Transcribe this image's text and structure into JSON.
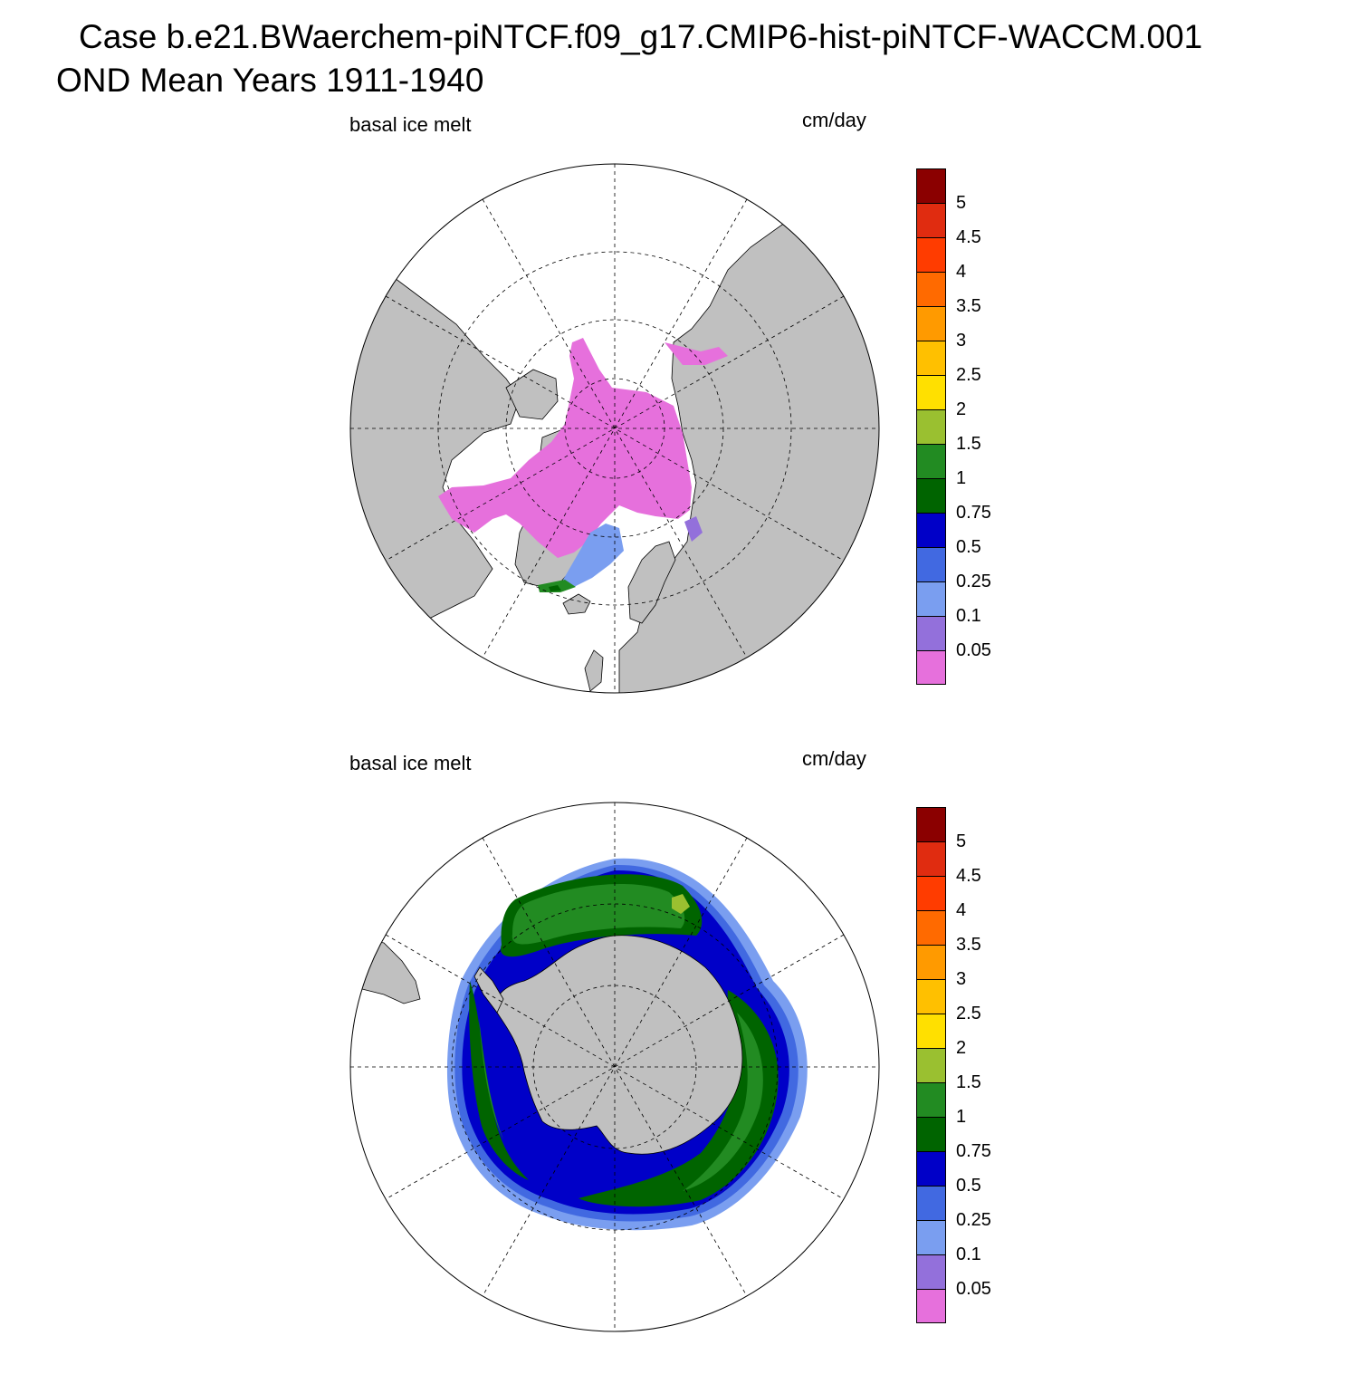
{
  "title": {
    "line1": "Case b.e21.BWaerchem-piNTCF.f09_g17.CMIP6-hist-piNTCF-WACCM.001",
    "line2": "OND Mean   Years 1911-1940"
  },
  "colors": {
    "land": "#c0c0c0",
    "ocean": "#ffffff",
    "coast": "#000000",
    "grid": "#000000"
  },
  "colorbar": {
    "levels": [
      "0.05",
      "0.1",
      "0.25",
      "0.5",
      "0.75",
      "1",
      "1.5",
      "2",
      "2.5",
      "3",
      "3.5",
      "4",
      "4.5",
      "5"
    ],
    "colors": [
      "#e670dc",
      "#9370db",
      "#7a9ef0",
      "#4169e1",
      "#0000c8",
      "#006400",
      "#228b22",
      "#9ac030",
      "#ffe000",
      "#ffc000",
      "#ff9a00",
      "#ff6a00",
      "#ff3c00",
      "#e02c10",
      "#8b0000"
    ]
  },
  "panels": [
    {
      "id": "north",
      "variable": "basal ice melt",
      "units": "cm/day",
      "projection": "north-polar-stereographic"
    },
    {
      "id": "south",
      "variable": "basal ice melt",
      "units": "cm/day",
      "projection": "south-polar-stereographic"
    }
  ]
}
